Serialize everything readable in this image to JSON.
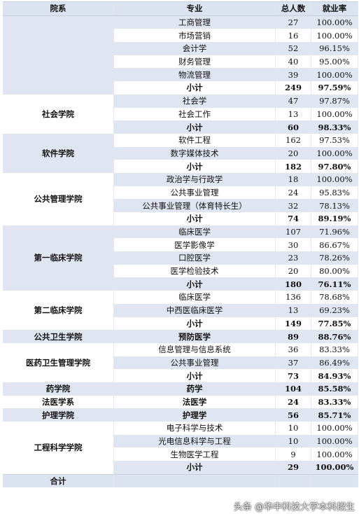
{
  "header": {
    "school": "院系",
    "major": "专业",
    "total": "总人数",
    "rate": "就业率"
  },
  "groups": [
    {
      "school": "",
      "rows": [
        {
          "major": "工商管理",
          "total": "27",
          "rate": "100.00%"
        },
        {
          "major": "市场营销",
          "total": "16",
          "rate": "100.00%"
        },
        {
          "major": "会计学",
          "total": "52",
          "rate": "96.15%"
        },
        {
          "major": "财务管理",
          "total": "40",
          "rate": "95.00%"
        },
        {
          "major": "物流管理",
          "total": "39",
          "rate": "100.00%"
        },
        {
          "major": "小计",
          "total": "249",
          "rate": "97.59%",
          "sub": true
        }
      ]
    },
    {
      "school": "社会学院",
      "rows": [
        {
          "major": "社会学",
          "total": "47",
          "rate": "97.87%"
        },
        {
          "major": "社会工作",
          "total": "13",
          "rate": "100.00%"
        },
        {
          "major": "小计",
          "total": "60",
          "rate": "98.33%",
          "sub": true
        }
      ]
    },
    {
      "school": "软件学院",
      "rows": [
        {
          "major": "软件工程",
          "total": "162",
          "rate": "97.53%"
        },
        {
          "major": "数字媒体技术",
          "total": "20",
          "rate": "100.00%"
        },
        {
          "major": "小计",
          "total": "182",
          "rate": "97.80%",
          "sub": true
        }
      ]
    },
    {
      "school": "公共管理学院",
      "rows": [
        {
          "major": "政治学与行政学",
          "total": "18",
          "rate": "100.00%"
        },
        {
          "major": "公共事业管理",
          "total": "24",
          "rate": "95.83%"
        },
        {
          "major": "公共事业管理（体育特长生）",
          "total": "32",
          "rate": "78.13%"
        },
        {
          "major": "小计",
          "total": "74",
          "rate": "89.19%",
          "sub": true
        }
      ]
    },
    {
      "school": "第一临床学院",
      "rows": [
        {
          "major": "临床医学",
          "total": "107",
          "rate": "71.96%"
        },
        {
          "major": "医学影像学",
          "total": "30",
          "rate": "86.67%"
        },
        {
          "major": "口腔医学",
          "total": "23",
          "rate": "78.26%"
        },
        {
          "major": "医学检验技术",
          "total": "20",
          "rate": "80.00%"
        },
        {
          "major": "小计",
          "total": "180",
          "rate": "76.11%",
          "sub": true
        }
      ]
    },
    {
      "school": "第二临床学院",
      "rows": [
        {
          "major": "临床医学",
          "total": "136",
          "rate": "78.68%"
        },
        {
          "major": "中西医临床医学",
          "total": "13",
          "rate": "69.23%"
        },
        {
          "major": "小计",
          "total": "149",
          "rate": "77.85%",
          "sub": true
        }
      ]
    },
    {
      "school": "公共卫生学院",
      "rows": [
        {
          "major": "预防医学",
          "total": "89",
          "rate": "88.76%",
          "sub": true
        }
      ]
    },
    {
      "school": "医药卫生管理学院",
      "rows": [
        {
          "major": "信息管理与信息系统",
          "total": "36",
          "rate": "83.33%"
        },
        {
          "major": "公共事业管理",
          "total": "37",
          "rate": "86.49%"
        },
        {
          "major": "小计",
          "total": "73",
          "rate": "84.93%",
          "sub": true
        }
      ]
    },
    {
      "school": "药学院",
      "rows": [
        {
          "major": "药学",
          "total": "104",
          "rate": "85.58%",
          "sub": true
        }
      ]
    },
    {
      "school": "法医学系",
      "rows": [
        {
          "major": "法医学",
          "total": "24",
          "rate": "83.33%",
          "sub": true
        }
      ]
    },
    {
      "school": "护理学院",
      "rows": [
        {
          "major": "护理学",
          "total": "56",
          "rate": "85.71%",
          "sub": true
        }
      ]
    },
    {
      "school": "工程科学学院",
      "rows": [
        {
          "major": "电子科学与技术",
          "total": "10",
          "rate": "100.00%"
        },
        {
          "major": "光电信息科学与工程",
          "total": "10",
          "rate": "100.00%"
        },
        {
          "major": "生物医学工程",
          "total": "9",
          "rate": "100.00%"
        },
        {
          "major": "小计",
          "total": "29",
          "rate": "100.00%",
          "sub": true
        }
      ]
    }
  ],
  "total_row": {
    "label": "合计",
    "total": "",
    "rate": ""
  },
  "watermark": "头条 @华中科技大学本科招生"
}
